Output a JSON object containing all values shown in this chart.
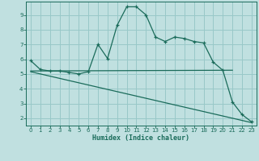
{
  "xlabel": "Humidex (Indice chaleur)",
  "bg_color": "#c0e0e0",
  "grid_color": "#98c8c8",
  "line_color": "#1a6b5a",
  "xlim": [
    -0.5,
    23.5
  ],
  "ylim": [
    1.5,
    9.9
  ],
  "xticks": [
    0,
    1,
    2,
    3,
    4,
    5,
    6,
    7,
    8,
    9,
    10,
    11,
    12,
    13,
    14,
    15,
    16,
    17,
    18,
    19,
    20,
    21,
    22,
    23
  ],
  "yticks": [
    2,
    3,
    4,
    5,
    6,
    7,
    8,
    9
  ],
  "line1_x": [
    0,
    1,
    2,
    3,
    4,
    5,
    6,
    7,
    8,
    9,
    10,
    11,
    12,
    13,
    14,
    15,
    16,
    17,
    18,
    19,
    20,
    21,
    22,
    23
  ],
  "line1_y": [
    5.9,
    5.3,
    5.2,
    5.2,
    5.1,
    5.0,
    5.15,
    7.0,
    6.05,
    8.3,
    9.55,
    9.55,
    9.0,
    7.5,
    7.2,
    7.5,
    7.4,
    7.2,
    7.1,
    5.8,
    5.25,
    3.1,
    2.25,
    1.75
  ],
  "line2_x": [
    0,
    21
  ],
  "line2_y": [
    5.2,
    5.25
  ],
  "line3_x": [
    0,
    23
  ],
  "line3_y": [
    5.15,
    1.7
  ]
}
